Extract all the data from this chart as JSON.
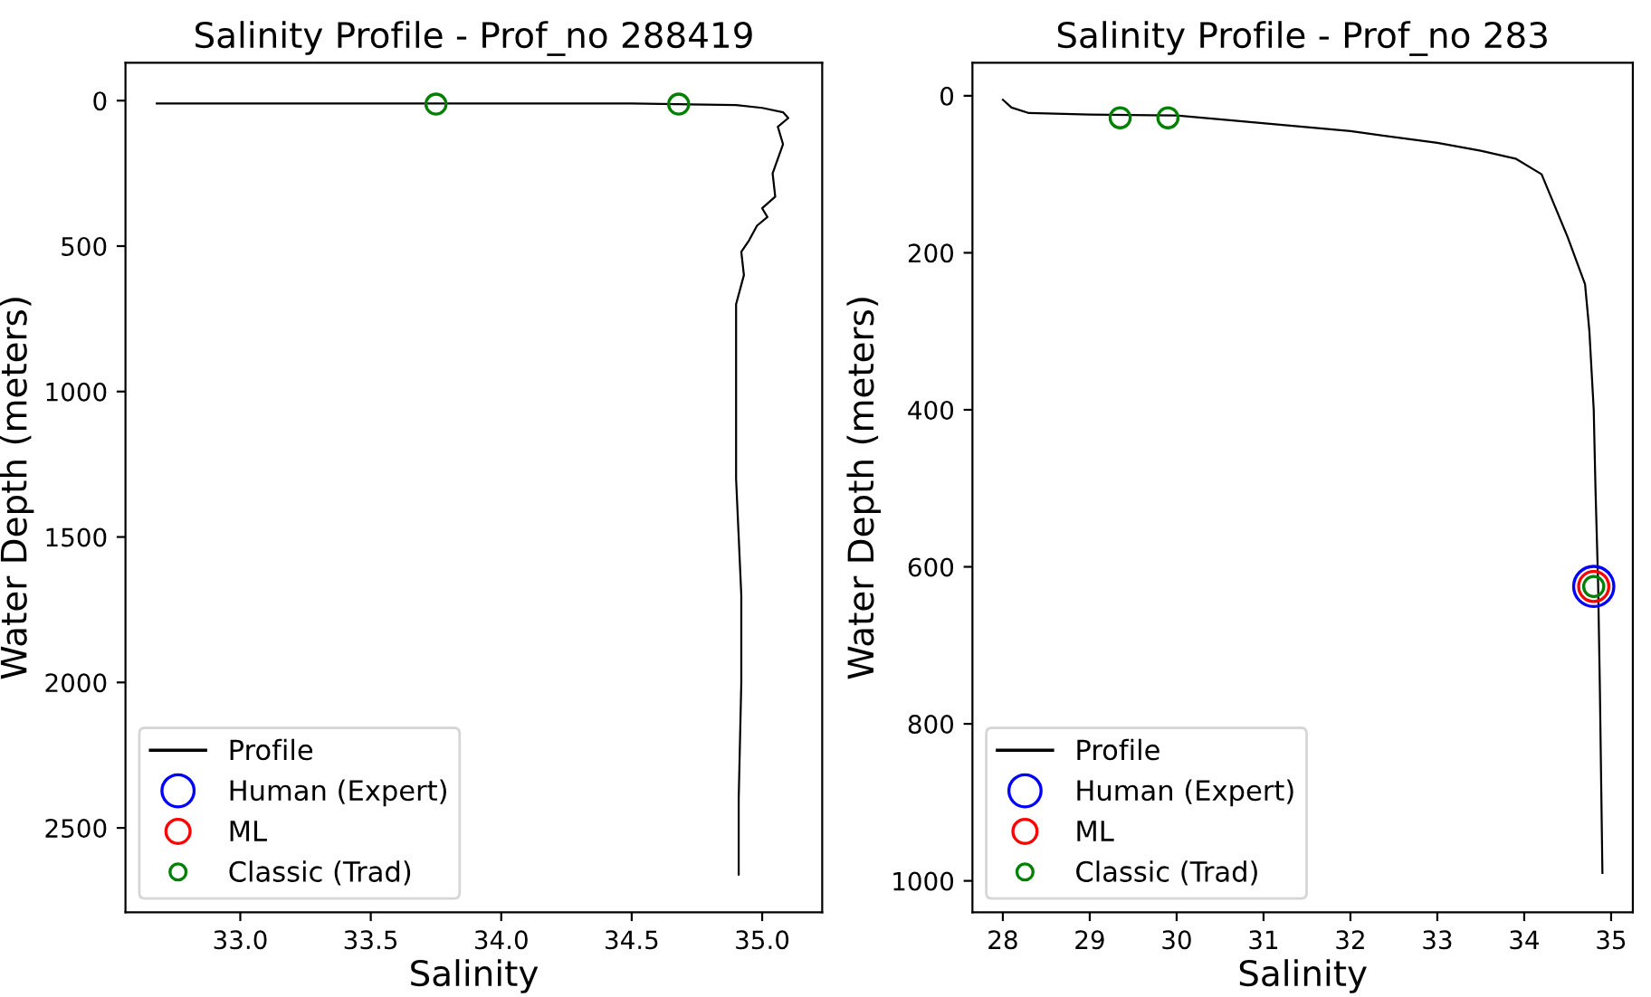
{
  "chart_data": [
    {
      "type": "line",
      "title": "Salinity Profile - Prof_no 288419",
      "xlabel": "Salinity",
      "ylabel": "Water Depth (meters)",
      "xlim": [
        32.56,
        35.23
      ],
      "xticks": [
        {
          "value": 33,
          "label": "33.0"
        },
        {
          "value": 33.5,
          "label": "33.5"
        },
        {
          "value": 34,
          "label": "34.0"
        },
        {
          "value": 34.5,
          "label": "34.5"
        },
        {
          "value": 35,
          "label": "35.0"
        }
      ],
      "ylim": [
        2790,
        -130
      ],
      "yticks": [
        0,
        500,
        1000,
        1500,
        2000,
        2500
      ],
      "grid": false,
      "legend": "bottom left",
      "series": [
        {
          "name": "Profile",
          "color": "#000000",
          "marker": "none",
          "x": [
            32.68,
            32.9,
            33.5,
            34.5,
            34.9,
            35.0,
            35.08,
            35.1,
            35.06,
            35.08,
            35.04,
            35.05,
            35.0,
            35.02,
            34.98,
            34.95,
            34.92,
            34.93,
            34.9,
            34.9,
            34.9,
            34.91,
            34.92,
            34.92,
            34.91,
            34.91
          ],
          "values": [
            10,
            10,
            10,
            10,
            15,
            25,
            40,
            60,
            90,
            150,
            250,
            330,
            370,
            400,
            430,
            480,
            520,
            600,
            700,
            1000,
            1300,
            1500,
            1700,
            2000,
            2400,
            2660
          ]
        },
        {
          "name": "Human (Expert)",
          "type": "scatter",
          "color": "#0000ff",
          "marker": "circle"
        },
        {
          "name": "ML",
          "type": "scatter",
          "color": "#ff0000",
          "marker": "circle"
        },
        {
          "name": "Classic (Trad)",
          "type": "scatter",
          "color": "#008000",
          "marker": "circle",
          "x": [
            33.75,
            34.68
          ],
          "values": [
            12,
            12
          ]
        }
      ]
    },
    {
      "type": "line",
      "title": "Salinity Profile - Prof_no 283",
      "xlabel": "Salinity",
      "ylabel": "Water Depth (meters)",
      "xlim": [
        27.65,
        35.25
      ],
      "xticks": [
        28,
        29,
        30,
        31,
        32,
        33,
        34,
        35
      ],
      "ylim": [
        1040,
        -42
      ],
      "yticks": [
        0,
        200,
        400,
        600,
        800,
        1000
      ],
      "grid": false,
      "legend": "bottom left",
      "series": [
        {
          "name": "Profile",
          "color": "#000000",
          "marker": "none",
          "x": [
            28.0,
            28.1,
            28.3,
            29.0,
            30.0,
            30.7,
            32.0,
            33.0,
            33.5,
            33.9,
            34.2,
            34.5,
            34.7,
            34.75,
            34.8,
            34.82,
            34.85,
            34.87,
            34.9
          ],
          "values": [
            5,
            15,
            22,
            24,
            25,
            32,
            45,
            60,
            70,
            80,
            100,
            180,
            240,
            300,
            400,
            500,
            620,
            750,
            990
          ]
        },
        {
          "name": "Human (Expert)",
          "type": "scatter",
          "color": "#0000ff",
          "marker": "circle",
          "x": [
            34.8
          ],
          "values": [
            625
          ]
        },
        {
          "name": "ML",
          "type": "scatter",
          "color": "#ff0000",
          "marker": "circle",
          "x": [
            34.8
          ],
          "values": [
            625
          ]
        },
        {
          "name": "Classic (Trad)",
          "type": "scatter",
          "color": "#008000",
          "marker": "circle",
          "x": [
            29.35,
            29.9,
            34.8
          ],
          "values": [
            28,
            28,
            625
          ]
        }
      ]
    }
  ]
}
